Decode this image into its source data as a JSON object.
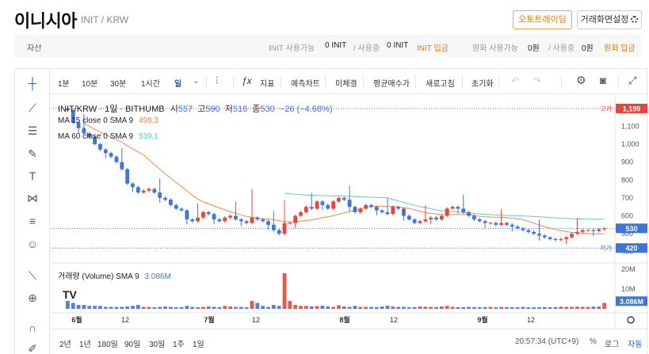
{
  "header": {
    "title": "이니시아",
    "pair": "INIT / KRW",
    "auto_trading": "오토트레이딩",
    "screen_settings": "거래화면설정"
  },
  "assets": {
    "label": "자산",
    "init_available_label": "INIT 사용가능",
    "init_available_value": "0 INIT",
    "init_in_use_label": "/ 사용중",
    "init_in_use_value": "0 INIT",
    "init_deposit": "INIT 입금",
    "krw_available_label": "원화 사용가능",
    "krw_available_value": "0원",
    "krw_in_use_label": "/ 사용중",
    "krw_in_use_value": "0원",
    "krw_deposit": "원화 입금"
  },
  "toolbar": {
    "intervals": [
      "1분",
      "10분",
      "30분",
      "1시간",
      "일"
    ],
    "indicator": "지표",
    "forecast": "예측차트",
    "fine_print": "미체결",
    "avg_price": "평균매수가",
    "refresh": "새로고침",
    "reset": "초기화"
  },
  "chart_info": {
    "symbol": "INIT/KRW · 1일 · BITHUMB",
    "open_label": "시",
    "open": "557",
    "high_label": "고",
    "high": "590",
    "low_label": "저",
    "low": "516",
    "close_label": "종",
    "close": "530",
    "change": "−26 (−4.68%)",
    "ma15_label": "MA 15 close 0 SMA 9",
    "ma15_value": "498.3",
    "ma60_label": "MA 60 close 0 SMA 9",
    "ma60_value": "539.1",
    "volume_label": "거래량 (Volume) SMA 9",
    "volume_value": "3.086M",
    "high_marker_label": "고가",
    "high_marker_value": "1,199",
    "low_marker_label": "저가",
    "low_marker_value": "420",
    "last_price": "530",
    "last_volume": "3.086M",
    "watermark": "TV"
  },
  "chart_data": {
    "type": "candlestick",
    "y_axis_ticks": [
      "1,100",
      "1,000",
      "900",
      "800",
      "700",
      "600",
      "500",
      "400"
    ],
    "y_axis_values": [
      1100,
      1000,
      900,
      800,
      700,
      600,
      500,
      400
    ],
    "volume_ticks": [
      "20M",
      "10M"
    ],
    "volume_tick_values": [
      20,
      10
    ],
    "x_ticks": [
      "6월",
      "12",
      "7월",
      "12",
      "8월",
      "12",
      "9월",
      "12"
    ],
    "ylim": [
      390,
      1230
    ],
    "close_approx": [
      1190,
      1120,
      1090,
      1060,
      1040,
      1000,
      970,
      950,
      930,
      900,
      860,
      780,
      760,
      730,
      740,
      750,
      730,
      700,
      690,
      660,
      640,
      630,
      580,
      570,
      590,
      620,
      610,
      580,
      570,
      590,
      600,
      580,
      570,
      560,
      590,
      580,
      570,
      550,
      520,
      500,
      560,
      560,
      600,
      620,
      650,
      640,
      680,
      660,
      640,
      680,
      700,
      690,
      650,
      620,
      640,
      660,
      650,
      630,
      620,
      610,
      650,
      640,
      600,
      580,
      560,
      570,
      580,
      590,
      580,
      600,
      640,
      650,
      640,
      620,
      600,
      580,
      570,
      560,
      560,
      550,
      560,
      550,
      540,
      530,
      520,
      510,
      500,
      490,
      480,
      470,
      465,
      470,
      480,
      500,
      510,
      520,
      520,
      515,
      525,
      530
    ],
    "volume_approx_m": [
      4,
      3,
      2,
      2,
      1.5,
      1.5,
      1.5,
      1,
      1,
      1,
      1,
      1.2,
      1.5,
      2,
      1,
      1,
      0.8,
      1,
      1.2,
      1,
      0.8,
      0.9,
      1.5,
      1,
      0.8,
      1,
      1.2,
      1,
      0.8,
      1.5,
      1.2,
      1,
      1,
      0.8,
      4,
      3,
      1.5,
      1,
      2,
      1.5,
      18,
      4,
      2,
      1.5,
      1.5,
      1.2,
      1.4,
      1.6,
      1.2,
      1,
      1.8,
      1.2,
      1,
      1.5,
      1,
      1,
      1,
      0.9,
      1.2,
      1.6,
      1.2,
      1,
      1,
      0.8,
      0.9,
      1.2,
      1.1,
      1,
      0.9,
      1.2,
      1.5,
      1,
      0.8,
      0.8,
      1,
      0.9,
      0.8,
      0.9,
      1,
      0.8,
      1,
      0.9,
      0.8,
      0.8,
      1,
      0.8,
      0.8,
      0.8,
      0.9,
      0.8,
      0.9,
      1.1,
      1,
      1,
      1.1,
      1,
      1,
      1.1,
      1.2,
      3
    ]
  },
  "bottom_bar": {
    "ranges": [
      "2년",
      "1년",
      "180일",
      "90일",
      "30일",
      "1주",
      "1일"
    ],
    "time": "20:57:34 (UTC+9)",
    "percent": "%",
    "log": "로그",
    "auto": "자동"
  },
  "colors": {
    "up": "#e8453c",
    "down": "#3f74d9",
    "ma15": "#f0884a",
    "ma60": "#5cc9d6",
    "accent": "#e07a10"
  }
}
